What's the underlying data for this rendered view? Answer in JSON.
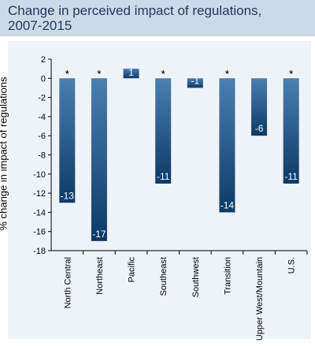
{
  "chart_data": {
    "type": "bar",
    "title": "Change in perceived impact of regulations, 2007-2015",
    "title_lines": [
      "Change in perceived impact of regulations,",
      "2007-2015"
    ],
    "ylabel": "% change in impact of regulations",
    "xlabel": "",
    "ylim": [
      -18,
      2
    ],
    "yticks": [
      2,
      0,
      -2,
      -4,
      -6,
      -8,
      -10,
      -12,
      -14,
      -16,
      -18
    ],
    "categories": [
      "North Central",
      "Northeast",
      "Pacific",
      "Southeast",
      "Southwest",
      "Transition",
      "Upper West/Mountain",
      "U.S."
    ],
    "values": [
      -13,
      -17,
      1,
      -11,
      -1,
      -14,
      -6,
      -11
    ],
    "significance_marker": "*",
    "significant": [
      true,
      true,
      false,
      true,
      false,
      true,
      false,
      true
    ],
    "colors": {
      "bar_top": "#4a7fb0",
      "bar_bottom": "#0d3a66",
      "background": "#eef3f8",
      "title_bg": "#ccd9e6",
      "title_text": "#1f3a5f"
    },
    "grid": false
  }
}
